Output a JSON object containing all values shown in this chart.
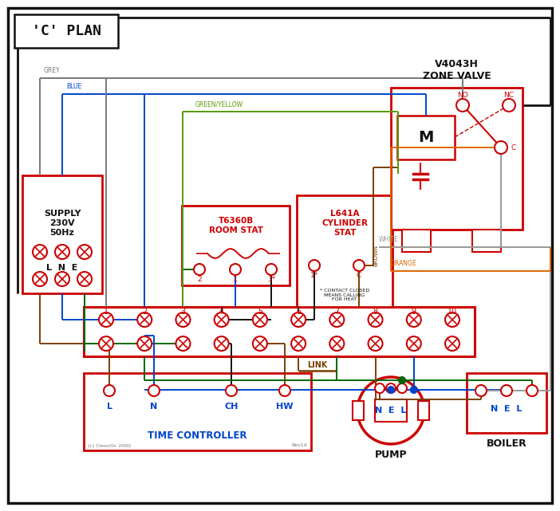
{
  "bg": "#ffffff",
  "RED": "#cc0000",
  "BLUE": "#0044cc",
  "GREEN": "#006600",
  "GREY": "#777777",
  "BROWN": "#7B3F00",
  "ORANGE": "#DD6600",
  "BLACK": "#111111",
  "GYL": "#559900",
  "WHITE_W": "#999999",
  "title": "'C' PLAN",
  "supply_text": "SUPPLY\n230V\n50Hz",
  "lne": "L  N  E",
  "zone_valve": "V4043H\nZONE VALVE",
  "room_stat_title": "T6360B\nROOM STAT",
  "cyl_stat_title": "L641A\nCYLINDER\nSTAT",
  "contact_note": "* CONTACT CLOSED\nMEANS CALLING\nFOR HEAT",
  "time_ctrl": "TIME CONTROLLER",
  "pump_lbl": "PUMP",
  "boiler_lbl": "BOILER",
  "link_lbl": "LINK",
  "copyright": "(c) CleevOc 2000",
  "rev": "Rev1d",
  "grey_lbl": "GREY",
  "blue_lbl": "BLUE",
  "gy_lbl": "GREEN/YELLOW",
  "brown_lbl": "BROWN",
  "white_lbl": "WHITE",
  "orange_lbl": "ORANGE"
}
